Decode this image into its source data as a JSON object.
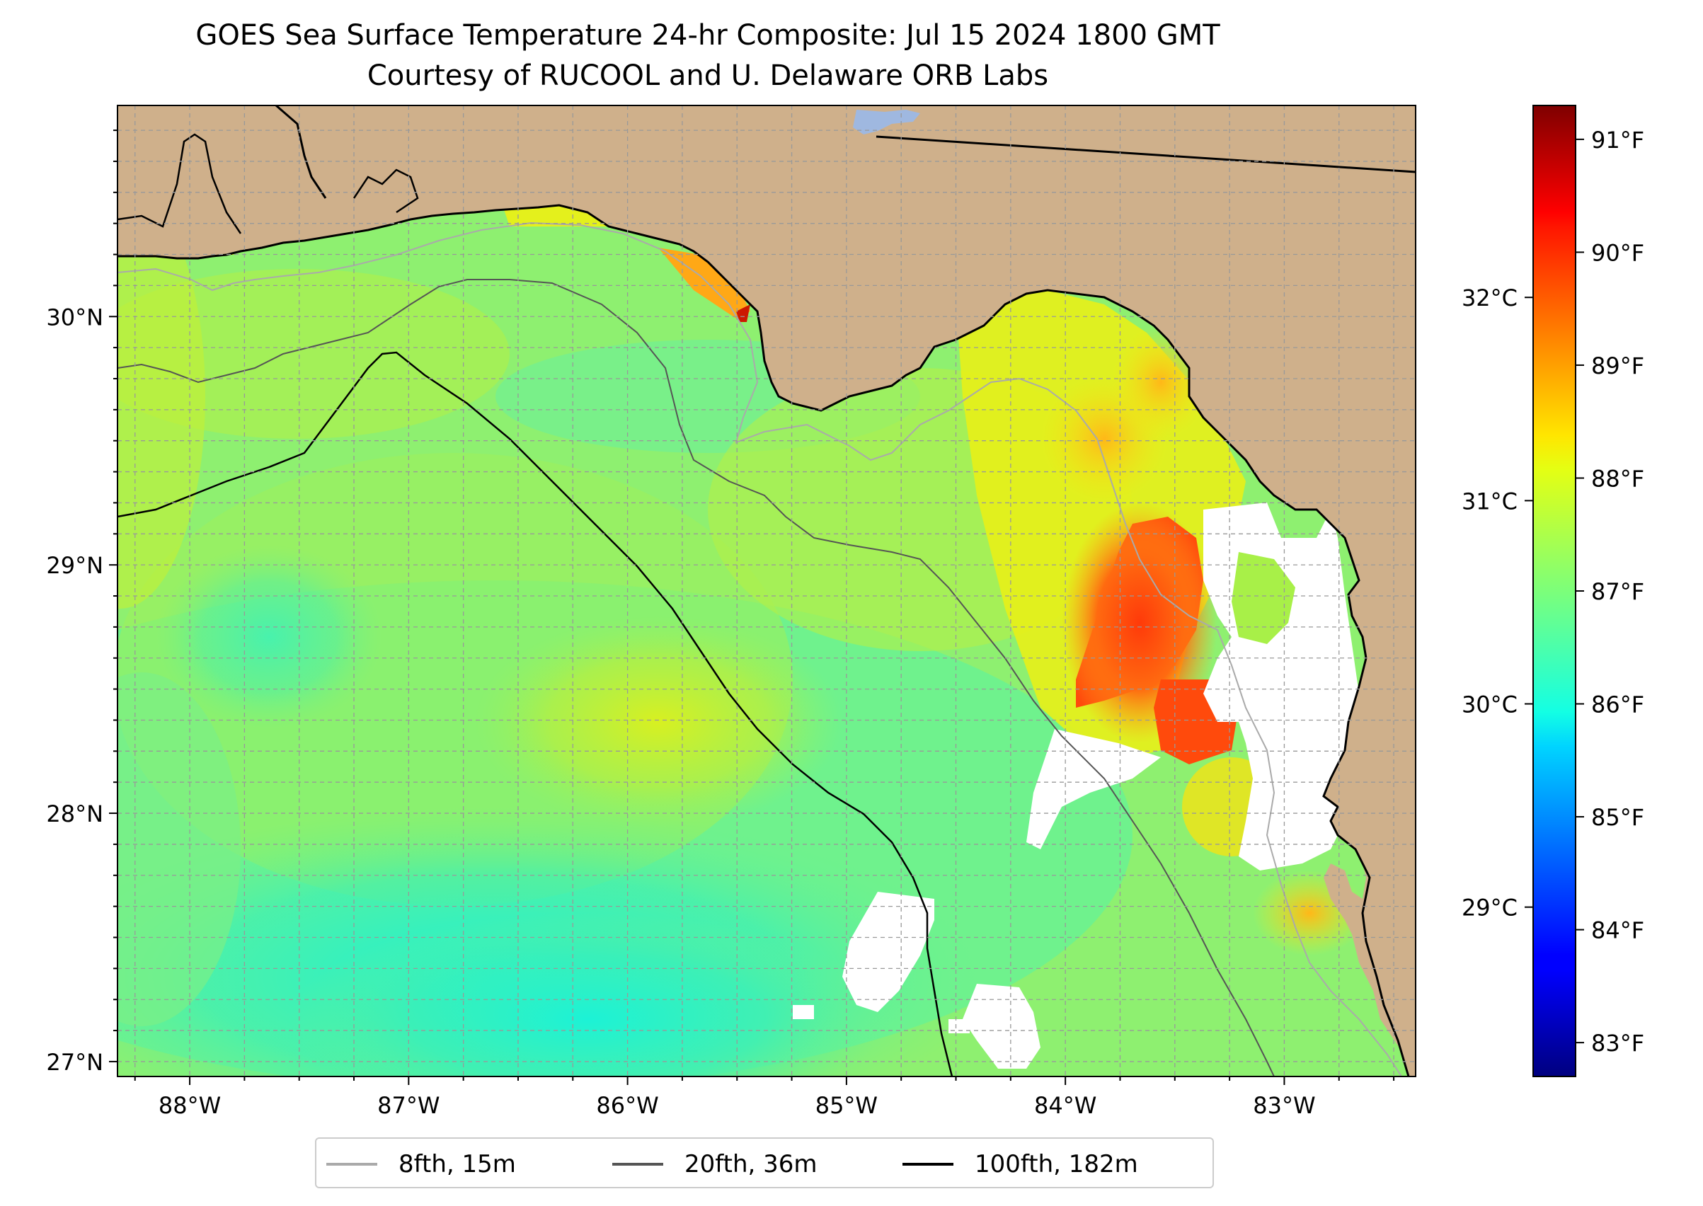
{
  "title": "GOES Sea Surface Temperature 24-hr Composite: Jul 15 2024 1800 GMT",
  "subtitle": "Courtesy of RUCOOL and U. Delaware ORB Labs",
  "map": {
    "type": "sea-surface-temperature map",
    "lon_range": [
      -88.33,
      -82.4
    ],
    "lat_range": [
      26.94,
      30.85
    ],
    "lon_ticks": [
      {
        "value": -88,
        "label": "88°W"
      },
      {
        "value": -87,
        "label": "87°W"
      },
      {
        "value": -86,
        "label": "86°W"
      },
      {
        "value": -85,
        "label": "85°W"
      },
      {
        "value": -84,
        "label": "84°W"
      },
      {
        "value": -83,
        "label": "83°W"
      }
    ],
    "lat_ticks": [
      {
        "value": 27,
        "label": "27°N"
      },
      {
        "value": 28,
        "label": "28°N"
      },
      {
        "value": 29,
        "label": "29°N"
      },
      {
        "value": 30,
        "label": "30°N"
      }
    ],
    "grid": true,
    "colors": {
      "land": "#cfb08b",
      "no_data": "#ffffff",
      "lake": "#9fb8e0",
      "coast": "#000000",
      "contour_8": "#aaaaaa",
      "contour_20": "#555555",
      "contour_100": "#000000"
    }
  },
  "colorbar": {
    "colormap": "jet",
    "range_f": [
      82.7,
      91.3
    ],
    "f_ticks": [
      {
        "value": 83,
        "label": "83°F"
      },
      {
        "value": 84,
        "label": "84°F"
      },
      {
        "value": 85,
        "label": "85°F"
      },
      {
        "value": 86,
        "label": "86°F"
      },
      {
        "value": 87,
        "label": "87°F"
      },
      {
        "value": 88,
        "label": "88°F"
      },
      {
        "value": 89,
        "label": "89°F"
      },
      {
        "value": 90,
        "label": "90°F"
      },
      {
        "value": 91,
        "label": "91°F"
      }
    ],
    "c_ticks": [
      {
        "value": 29,
        "label": "29°C"
      },
      {
        "value": 30,
        "label": "30°C"
      },
      {
        "value": 31,
        "label": "31°C"
      },
      {
        "value": 32,
        "label": "32°C"
      }
    ]
  },
  "legend": {
    "placement": "bottom-center",
    "items": [
      {
        "label": "8fth, 15m",
        "color": "#aaaaaa"
      },
      {
        "label": "20fth, 36m",
        "color": "#555555"
      },
      {
        "label": "100fth, 182m",
        "color": "#000000"
      }
    ]
  }
}
